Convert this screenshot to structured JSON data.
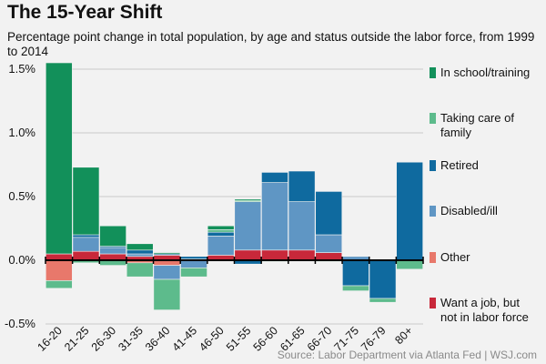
{
  "header": {
    "title": "The 15-Year Shift",
    "subtitle": "Percentage point change in total population, by age and status outside the labor force, from 1999 to 2014"
  },
  "footer": {
    "source": "Source: Labor Department via Atlanta Fed  |  WSJ.com"
  },
  "chart_data": {
    "type": "bar",
    "stacked": true,
    "categories": [
      "16-20",
      "21-25",
      "26-30",
      "31-35",
      "36-40",
      "41-45",
      "46-50",
      "51-55",
      "56-60",
      "61-65",
      "66-70",
      "71-75",
      "76-79",
      "80+"
    ],
    "ylim": [
      -0.5,
      1.5
    ],
    "yticks": [
      -0.5,
      0.0,
      0.5,
      1.0,
      1.5
    ],
    "ytick_labels": [
      "-0.5%",
      "0.0%",
      "0.5%",
      "1.0%",
      "1.5%"
    ],
    "grid": true,
    "legend_position": "right",
    "series": [
      {
        "name": "Want a job, but not in labor force",
        "color": "#c8283a",
        "values": [
          0.05,
          0.07,
          0.05,
          0.03,
          0.04,
          0.01,
          0.04,
          0.08,
          0.08,
          0.08,
          0.06,
          0.0,
          0.0,
          0.0
        ]
      },
      {
        "name": "Other",
        "color": "#e8786b",
        "values": [
          -0.16,
          0.0,
          0.0,
          -0.02,
          -0.04,
          0.0,
          0.0,
          0.0,
          0.0,
          0.0,
          0.0,
          0.0,
          0.0,
          0.0
        ]
      },
      {
        "name": "Disabled/ill",
        "color": "#5f96c4",
        "values": [
          0.0,
          0.11,
          0.05,
          0.02,
          -0.11,
          -0.06,
          0.15,
          0.38,
          0.53,
          0.38,
          0.14,
          0.03,
          0.0,
          0.0
        ]
      },
      {
        "name": "Retired",
        "color": "#0f6a9f",
        "values": [
          0.0,
          0.02,
          0.01,
          0.03,
          0.01,
          0.02,
          0.03,
          -0.03,
          0.08,
          0.24,
          0.34,
          -0.2,
          -0.3,
          0.77
        ]
      },
      {
        "name": "Taking care of family",
        "color": "#5dbb8c",
        "values": [
          -0.06,
          -0.02,
          -0.04,
          -0.11,
          -0.24,
          -0.07,
          0.02,
          0.01,
          -0.01,
          0.0,
          -0.01,
          -0.04,
          -0.03,
          -0.07
        ]
      },
      {
        "name": "In school/training",
        "color": "#12905a",
        "values": [
          1.5,
          0.53,
          0.16,
          0.05,
          0.01,
          0.0,
          0.03,
          0.01,
          0.0,
          0.0,
          0.0,
          0.0,
          0.0,
          0.0
        ]
      }
    ],
    "legend_order": [
      "In school/training",
      "Taking care of family",
      "Retired",
      "Disabled/ill",
      "Other",
      "Want a job, but not in labor force"
    ]
  }
}
